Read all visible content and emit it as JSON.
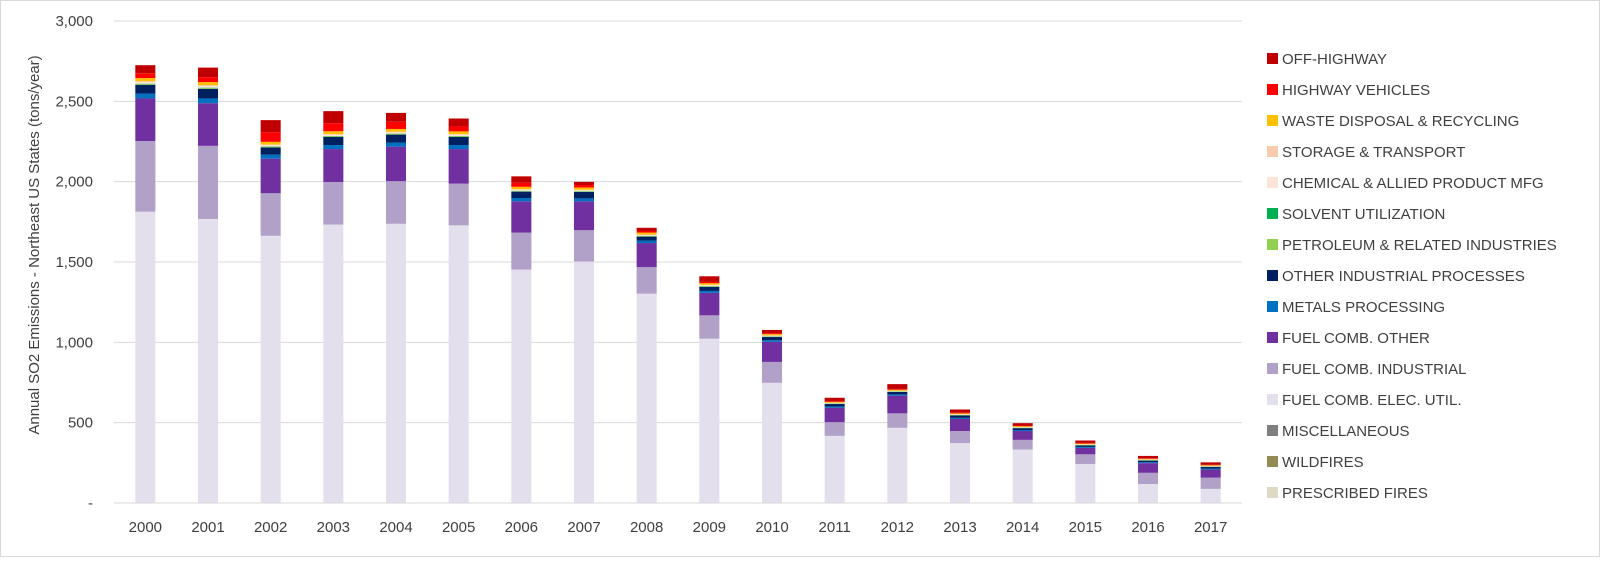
{
  "chart_data": {
    "type": "bar",
    "stacked": true,
    "title": "",
    "xlabel": "",
    "ylabel": "Annual SO2 Emissions - Northeast US States  (tons/year)",
    "ylim": [
      0,
      3000
    ],
    "yticks": [
      0,
      500,
      1000,
      1500,
      2000,
      2500,
      3000
    ],
    "ytick_labels": [
      "-",
      "500",
      "1,000",
      "1,500",
      "2,000",
      "2,500",
      "3,000"
    ],
    "grid": true,
    "legend_position": "right",
    "categories": [
      "2000",
      "2001",
      "2002",
      "2003",
      "2004",
      "2005",
      "2006",
      "2007",
      "2008",
      "2009",
      "2010",
      "2011",
      "2012",
      "2013",
      "2014",
      "2015",
      "2016",
      "2017"
    ],
    "series": [
      {
        "name": "PRESCRIBED FIRES",
        "color": "#ddd9c3",
        "values": [
          1,
          1,
          1,
          1,
          1,
          1,
          1,
          1,
          1,
          1,
          1,
          1,
          1,
          1,
          1,
          1,
          1,
          1
        ]
      },
      {
        "name": "WILDFIRES",
        "color": "#948a54",
        "values": [
          1,
          1,
          1,
          1,
          1,
          1,
          1,
          1,
          1,
          1,
          1,
          1,
          1,
          1,
          1,
          1,
          1,
          1
        ]
      },
      {
        "name": "MISCELLANEOUS",
        "color": "#7f7f7f",
        "values": [
          1,
          1,
          1,
          1,
          1,
          1,
          1,
          1,
          1,
          1,
          1,
          1,
          1,
          1,
          1,
          1,
          1,
          1
        ]
      },
      {
        "name": "FUEL COMB. ELEC. UTIL.",
        "color": "#e4dfec",
        "values": [
          1810,
          1765,
          1660,
          1730,
          1735,
          1725,
          1450,
          1500,
          1300,
          1020,
          745,
          415,
          465,
          370,
          330,
          240,
          115,
          85
        ]
      },
      {
        "name": "FUEL COMB. INDUSTRIAL",
        "color": "#b1a0c7",
        "values": [
          440,
          455,
          265,
          265,
          265,
          260,
          230,
          195,
          165,
          145,
          130,
          85,
          90,
          75,
          60,
          60,
          70,
          70
        ]
      },
      {
        "name": "FUEL COMB. OTHER",
        "color": "#7030a0",
        "values": [
          265,
          265,
          215,
          205,
          215,
          215,
          195,
          180,
          150,
          140,
          125,
          90,
          110,
          75,
          55,
          40,
          60,
          50
        ]
      },
      {
        "name": "METALS PROCESSING",
        "color": "#0070c0",
        "values": [
          30,
          30,
          25,
          25,
          25,
          25,
          20,
          18,
          15,
          12,
          10,
          8,
          8,
          7,
          6,
          6,
          6,
          6
        ]
      },
      {
        "name": "OTHER INDUSTRIAL PROCESSES",
        "color": "#002060",
        "values": [
          55,
          60,
          45,
          50,
          50,
          50,
          40,
          40,
          25,
          25,
          20,
          15,
          15,
          15,
          12,
          10,
          10,
          10
        ]
      },
      {
        "name": "PETROLEUM & RELATED INDUSTRIES",
        "color": "#92d050",
        "values": [
          5,
          5,
          4,
          4,
          4,
          4,
          3,
          3,
          3,
          3,
          2,
          2,
          2,
          2,
          2,
          2,
          2,
          2
        ]
      },
      {
        "name": "SOLVENT UTILIZATION",
        "color": "#00b050",
        "values": [
          2,
          2,
          2,
          2,
          2,
          2,
          2,
          2,
          2,
          2,
          2,
          1,
          1,
          1,
          1,
          1,
          1,
          1
        ]
      },
      {
        "name": "CHEMICAL & ALLIED PRODUCT MFG",
        "color": "#fce4d6",
        "values": [
          10,
          10,
          8,
          8,
          8,
          8,
          7,
          6,
          5,
          5,
          4,
          3,
          3,
          3,
          2,
          2,
          2,
          2
        ]
      },
      {
        "name": "STORAGE & TRANSPORT",
        "color": "#f8cbad",
        "values": [
          5,
          5,
          4,
          4,
          4,
          4,
          3,
          3,
          3,
          3,
          2,
          2,
          2,
          2,
          2,
          2,
          2,
          2
        ]
      },
      {
        "name": "WASTE DISPOSAL & RECYCLING",
        "color": "#ffc000",
        "values": [
          20,
          20,
          17,
          18,
          17,
          17,
          15,
          14,
          12,
          10,
          8,
          6,
          6,
          5,
          5,
          4,
          4,
          4
        ]
      },
      {
        "name": "HIGHWAY VEHICLES",
        "color": "#ff0000",
        "values": [
          30,
          30,
          60,
          50,
          45,
          30,
          25,
          15,
          10,
          8,
          6,
          5,
          5,
          4,
          4,
          4,
          3,
          3
        ]
      },
      {
        "name": "OFF-HIGHWAY",
        "color": "#c00000",
        "values": [
          50,
          60,
          75,
          75,
          55,
          50,
          40,
          20,
          20,
          35,
          20,
          20,
          30,
          20,
          15,
          15,
          15,
          15
        ]
      }
    ]
  }
}
